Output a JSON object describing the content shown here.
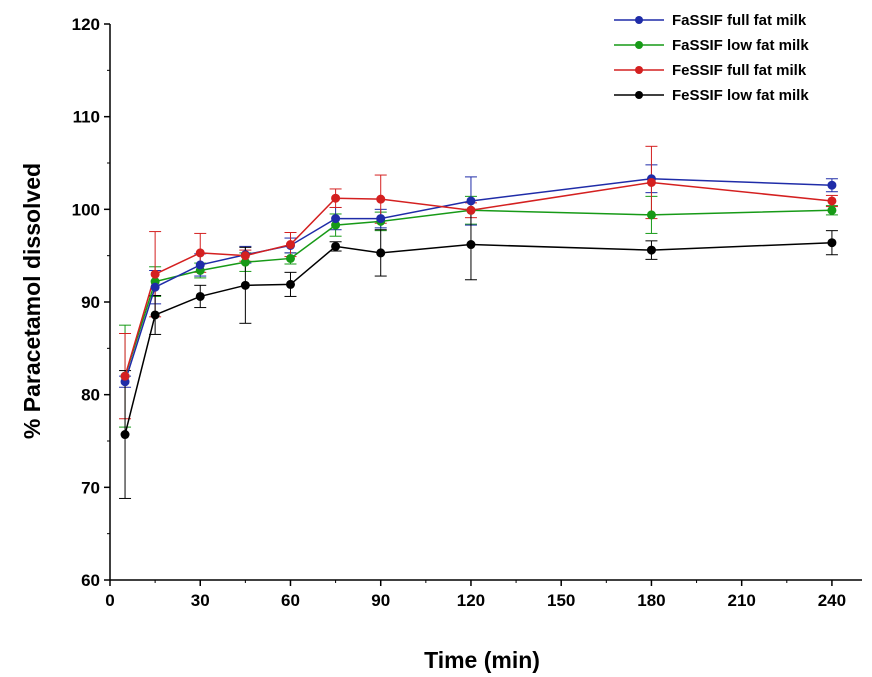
{
  "chart_data": {
    "type": "line",
    "xlabel": "Time (min)",
    "ylabel": "% Paracetamol dissolved",
    "xlim": [
      0,
      250
    ],
    "ylim": [
      60,
      120
    ],
    "xticks": [
      0,
      30,
      60,
      90,
      120,
      150,
      180,
      210,
      240
    ],
    "yticks": [
      60,
      70,
      80,
      90,
      100,
      110,
      120
    ],
    "x": [
      5,
      15,
      30,
      45,
      60,
      75,
      90,
      120,
      180,
      240
    ],
    "grid": false,
    "error_bars": true,
    "legend_position": "top-right",
    "series": [
      {
        "name": "FaSSIF full fat milk",
        "color": "#1f2ca8",
        "values": [
          81.4,
          91.6,
          94.0,
          95.1,
          96.1,
          99.0,
          99.0,
          100.9,
          103.3,
          102.6
        ],
        "errors": [
          0.6,
          1.8,
          1.2,
          0.9,
          0.8,
          1.2,
          1.0,
          2.6,
          1.5,
          0.7
        ]
      },
      {
        "name": "FaSSIF low fat milk",
        "color": "#179a17",
        "values": [
          82.0,
          92.2,
          93.4,
          94.3,
          94.7,
          98.3,
          98.7,
          99.9,
          99.4,
          99.9
        ],
        "errors": [
          5.5,
          1.6,
          0.8,
          1.0,
          0.6,
          1.2,
          1.0,
          1.5,
          2.0,
          0.5
        ]
      },
      {
        "name": "FeSSIF full fat milk",
        "color": "#d42020",
        "values": [
          82.0,
          93.0,
          95.3,
          95.0,
          96.2,
          101.2,
          101.1,
          99.9,
          102.9,
          100.9
        ],
        "errors": [
          4.6,
          4.6,
          2.1,
          0.6,
          1.3,
          1.0,
          2.6,
          0.8,
          3.9,
          0.6
        ]
      },
      {
        "name": "FeSSIF low fat milk",
        "color": "#000000",
        "values": [
          75.7,
          88.6,
          90.6,
          91.8,
          91.9,
          96.0,
          95.3,
          96.2,
          95.6,
          96.4
        ],
        "errors": [
          6.9,
          2.1,
          1.2,
          4.1,
          1.3,
          0.5,
          2.5,
          3.8,
          1.0,
          1.3
        ]
      }
    ]
  }
}
